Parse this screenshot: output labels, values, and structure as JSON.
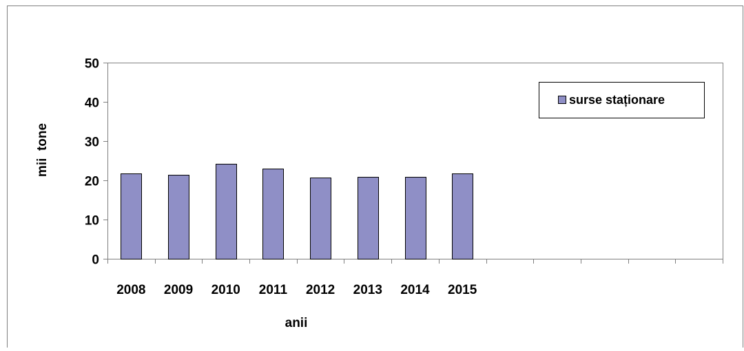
{
  "chart_data": {
    "type": "bar",
    "categories": [
      "2008",
      "2009",
      "2010",
      "2011",
      "2012",
      "2013",
      "2014",
      "2015",
      "",
      "",
      "",
      "",
      ""
    ],
    "series": [
      {
        "name": "surse staționare",
        "values": [
          21.7,
          21.4,
          24.2,
          23.0,
          20.7,
          20.8,
          20.9,
          21.8,
          null,
          null,
          null,
          null,
          null
        ]
      }
    ],
    "xlabel": "anii",
    "ylabel": "mii  tone",
    "ylim": [
      0,
      50
    ],
    "yticks": [
      "0",
      "10",
      "20",
      "30",
      "40",
      "50"
    ],
    "grid": false,
    "legend_position": "top-right",
    "colors": {
      "bar_fill": "#8f8fc6",
      "bar_stroke": "#000000",
      "axis": "#7f7f7f",
      "plot_border": "#7f7f7f",
      "frame": "#7f7f7f"
    }
  }
}
